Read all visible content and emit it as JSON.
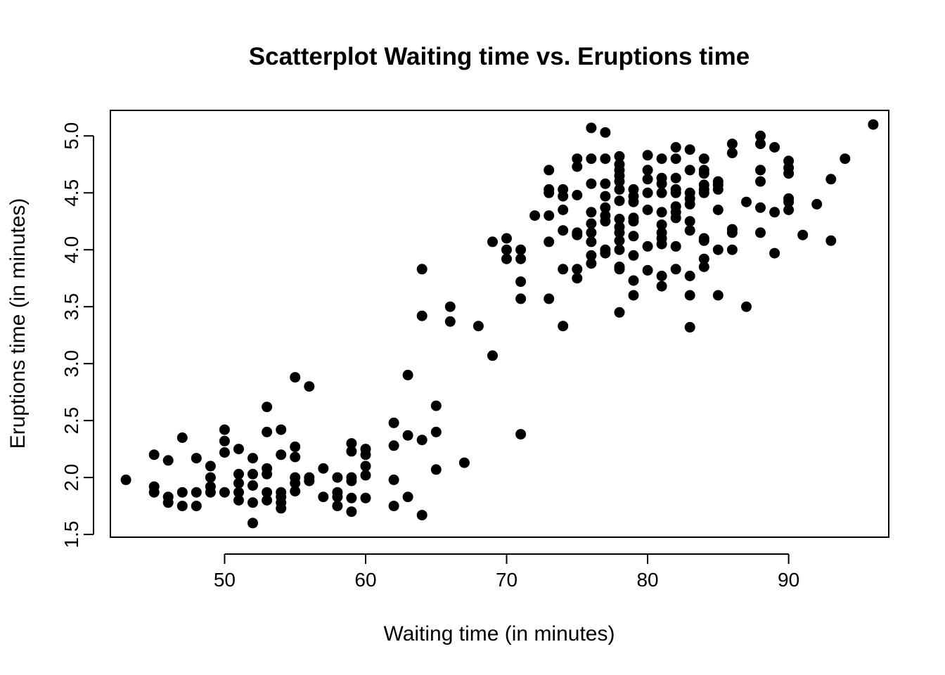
{
  "chart_data": {
    "type": "scatter",
    "title": "Scatterplot Waiting time vs. Eruptions time",
    "xlabel": "Waiting time (in minutes)",
    "ylabel": "Eruptions time (in minutes)",
    "xlim": [
      41.9,
      97.1
    ],
    "ylim": [
      1.476,
      5.224
    ],
    "xticks": [
      50,
      60,
      70,
      80,
      90
    ],
    "xtick_labels": [
      "50",
      "60",
      "70",
      "80",
      "90"
    ],
    "yticks": [
      1.5,
      2.0,
      2.5,
      3.0,
      3.5,
      4.0,
      4.5,
      5.0
    ],
    "ytick_labels": [
      "1.5",
      "2.0",
      "2.5",
      "3.0",
      "3.5",
      "4.0",
      "4.5",
      "5.0"
    ],
    "grid": false,
    "legend": "none",
    "point_color": "#000000",
    "points": [
      [
        43,
        1.98
      ],
      [
        45,
        2.2
      ],
      [
        45,
        1.92
      ],
      [
        45,
        1.87
      ],
      [
        46,
        2.15
      ],
      [
        46,
        1.83
      ],
      [
        46,
        1.78
      ],
      [
        47,
        2.35
      ],
      [
        47,
        1.87
      ],
      [
        47,
        1.75
      ],
      [
        48,
        2.17
      ],
      [
        48,
        1.87
      ],
      [
        48,
        1.75
      ],
      [
        49,
        2.1
      ],
      [
        49,
        2.0
      ],
      [
        49,
        1.92
      ],
      [
        49,
        1.87
      ],
      [
        50,
        2.42
      ],
      [
        50,
        2.32
      ],
      [
        50,
        2.22
      ],
      [
        50,
        1.87
      ],
      [
        51,
        2.25
      ],
      [
        51,
        2.03
      ],
      [
        51,
        1.95
      ],
      [
        51,
        1.87
      ],
      [
        51,
        1.8
      ],
      [
        52,
        2.17
      ],
      [
        52,
        2.03
      ],
      [
        52,
        1.93
      ],
      [
        52,
        1.78
      ],
      [
        52,
        1.6
      ],
      [
        53,
        2.62
      ],
      [
        53,
        2.4
      ],
      [
        53,
        2.08
      ],
      [
        53,
        2.03
      ],
      [
        53,
        1.87
      ],
      [
        53,
        1.8
      ],
      [
        54,
        2.42
      ],
      [
        54,
        2.2
      ],
      [
        54,
        1.87
      ],
      [
        54,
        1.83
      ],
      [
        54,
        1.78
      ],
      [
        54,
        1.73
      ],
      [
        55,
        2.88
      ],
      [
        55,
        2.27
      ],
      [
        55,
        2.18
      ],
      [
        55,
        2.0
      ],
      [
        55,
        1.95
      ],
      [
        55,
        1.88
      ],
      [
        56,
        2.8
      ],
      [
        56,
        2.0
      ],
      [
        56,
        1.97
      ],
      [
        57,
        2.08
      ],
      [
        57,
        1.83
      ],
      [
        58,
        2.0
      ],
      [
        58,
        1.87
      ],
      [
        58,
        1.83
      ],
      [
        58,
        1.75
      ],
      [
        59,
        2.3
      ],
      [
        59,
        2.23
      ],
      [
        59,
        2.0
      ],
      [
        59,
        1.97
      ],
      [
        59,
        1.82
      ],
      [
        59,
        1.7
      ],
      [
        60,
        2.25
      ],
      [
        60,
        2.2
      ],
      [
        60,
        2.1
      ],
      [
        60,
        2.02
      ],
      [
        60,
        1.82
      ],
      [
        62,
        2.48
      ],
      [
        62,
        2.28
      ],
      [
        62,
        1.98
      ],
      [
        62,
        1.75
      ],
      [
        63,
        2.9
      ],
      [
        63,
        2.37
      ],
      [
        63,
        1.83
      ],
      [
        64,
        3.83
      ],
      [
        64,
        3.42
      ],
      [
        64,
        2.33
      ],
      [
        64,
        1.67
      ],
      [
        65,
        2.63
      ],
      [
        65,
        2.4
      ],
      [
        65,
        2.07
      ],
      [
        66,
        3.5
      ],
      [
        66,
        3.37
      ],
      [
        67,
        2.13
      ],
      [
        68,
        3.33
      ],
      [
        69,
        4.07
      ],
      [
        69,
        3.07
      ],
      [
        70,
        4.1
      ],
      [
        70,
        4.0
      ],
      [
        70,
        3.92
      ],
      [
        71,
        4.0
      ],
      [
        71,
        3.92
      ],
      [
        71,
        3.72
      ],
      [
        71,
        3.57
      ],
      [
        71,
        2.38
      ],
      [
        72,
        4.3
      ],
      [
        73,
        4.7
      ],
      [
        73,
        4.53
      ],
      [
        73,
        4.5
      ],
      [
        73,
        4.3
      ],
      [
        73,
        4.07
      ],
      [
        73,
        3.57
      ],
      [
        74,
        4.53
      ],
      [
        74,
        4.47
      ],
      [
        74,
        4.35
      ],
      [
        74,
        4.17
      ],
      [
        74,
        3.83
      ],
      [
        74,
        3.33
      ],
      [
        75,
        4.8
      ],
      [
        75,
        4.73
      ],
      [
        75,
        4.48
      ],
      [
        75,
        4.15
      ],
      [
        75,
        4.13
      ],
      [
        75,
        3.83
      ],
      [
        75,
        3.75
      ],
      [
        76,
        5.07
      ],
      [
        76,
        4.8
      ],
      [
        76,
        4.58
      ],
      [
        76,
        4.33
      ],
      [
        76,
        4.23
      ],
      [
        76,
        4.15
      ],
      [
        76,
        4.07
      ],
      [
        76,
        3.95
      ],
      [
        76,
        3.88
      ],
      [
        77,
        5.03
      ],
      [
        77,
        4.8
      ],
      [
        77,
        4.58
      ],
      [
        77,
        4.47
      ],
      [
        77,
        4.37
      ],
      [
        77,
        4.3
      ],
      [
        77,
        4.25
      ],
      [
        77,
        4.0
      ],
      [
        77,
        3.97
      ],
      [
        78,
        4.82
      ],
      [
        78,
        4.75
      ],
      [
        78,
        4.7
      ],
      [
        78,
        4.65
      ],
      [
        78,
        4.6
      ],
      [
        78,
        4.53
      ],
      [
        78,
        4.43
      ],
      [
        78,
        4.27
      ],
      [
        78,
        4.2
      ],
      [
        78,
        4.15
      ],
      [
        78,
        4.08
      ],
      [
        78,
        4.0
      ],
      [
        78,
        3.85
      ],
      [
        78,
        3.83
      ],
      [
        78,
        3.45
      ],
      [
        79,
        4.53
      ],
      [
        79,
        4.47
      ],
      [
        79,
        4.42
      ],
      [
        79,
        4.28
      ],
      [
        79,
        4.25
      ],
      [
        79,
        4.12
      ],
      [
        79,
        3.95
      ],
      [
        79,
        3.73
      ],
      [
        79,
        3.6
      ],
      [
        80,
        4.83
      ],
      [
        80,
        4.7
      ],
      [
        80,
        4.62
      ],
      [
        80,
        4.5
      ],
      [
        80,
        4.35
      ],
      [
        80,
        4.03
      ],
      [
        80,
        3.82
      ],
      [
        81,
        4.8
      ],
      [
        81,
        4.63
      ],
      [
        81,
        4.58
      ],
      [
        81,
        4.5
      ],
      [
        81,
        4.33
      ],
      [
        81,
        4.22
      ],
      [
        81,
        4.15
      ],
      [
        81,
        4.1
      ],
      [
        81,
        4.05
      ],
      [
        81,
        3.77
      ],
      [
        81,
        3.68
      ],
      [
        82,
        4.9
      ],
      [
        82,
        4.8
      ],
      [
        82,
        4.63
      ],
      [
        82,
        4.53
      ],
      [
        82,
        4.5
      ],
      [
        82,
        4.38
      ],
      [
        82,
        4.33
      ],
      [
        82,
        4.28
      ],
      [
        82,
        4.03
      ],
      [
        82,
        3.83
      ],
      [
        83,
        4.88
      ],
      [
        83,
        4.7
      ],
      [
        83,
        4.5
      ],
      [
        83,
        4.45
      ],
      [
        83,
        4.4
      ],
      [
        83,
        4.25
      ],
      [
        83,
        4.17
      ],
      [
        83,
        3.77
      ],
      [
        83,
        3.6
      ],
      [
        83,
        3.32
      ],
      [
        84,
        4.8
      ],
      [
        84,
        4.7
      ],
      [
        84,
        4.67
      ],
      [
        84,
        4.57
      ],
      [
        84,
        4.53
      ],
      [
        84,
        4.5
      ],
      [
        84,
        4.1
      ],
      [
        84,
        4.08
      ],
      [
        84,
        3.92
      ],
      [
        84,
        3.85
      ],
      [
        85,
        4.6
      ],
      [
        85,
        4.57
      ],
      [
        85,
        4.53
      ],
      [
        85,
        4.35
      ],
      [
        85,
        4.0
      ],
      [
        85,
        3.6
      ],
      [
        86,
        4.93
      ],
      [
        86,
        4.85
      ],
      [
        86,
        4.18
      ],
      [
        86,
        4.15
      ],
      [
        86,
        4.0
      ],
      [
        87,
        4.42
      ],
      [
        87,
        3.5
      ],
      [
        88,
        5.0
      ],
      [
        88,
        4.93
      ],
      [
        88,
        4.7
      ],
      [
        88,
        4.6
      ],
      [
        88,
        4.37
      ],
      [
        88,
        4.15
      ],
      [
        89,
        4.9
      ],
      [
        89,
        4.33
      ],
      [
        89,
        3.97
      ],
      [
        90,
        4.78
      ],
      [
        90,
        4.72
      ],
      [
        90,
        4.67
      ],
      [
        90,
        4.45
      ],
      [
        90,
        4.42
      ],
      [
        90,
        4.35
      ],
      [
        91,
        4.13
      ],
      [
        92,
        4.4
      ],
      [
        93,
        4.62
      ],
      [
        93,
        4.08
      ],
      [
        94,
        4.8
      ],
      [
        96,
        5.1
      ]
    ]
  }
}
